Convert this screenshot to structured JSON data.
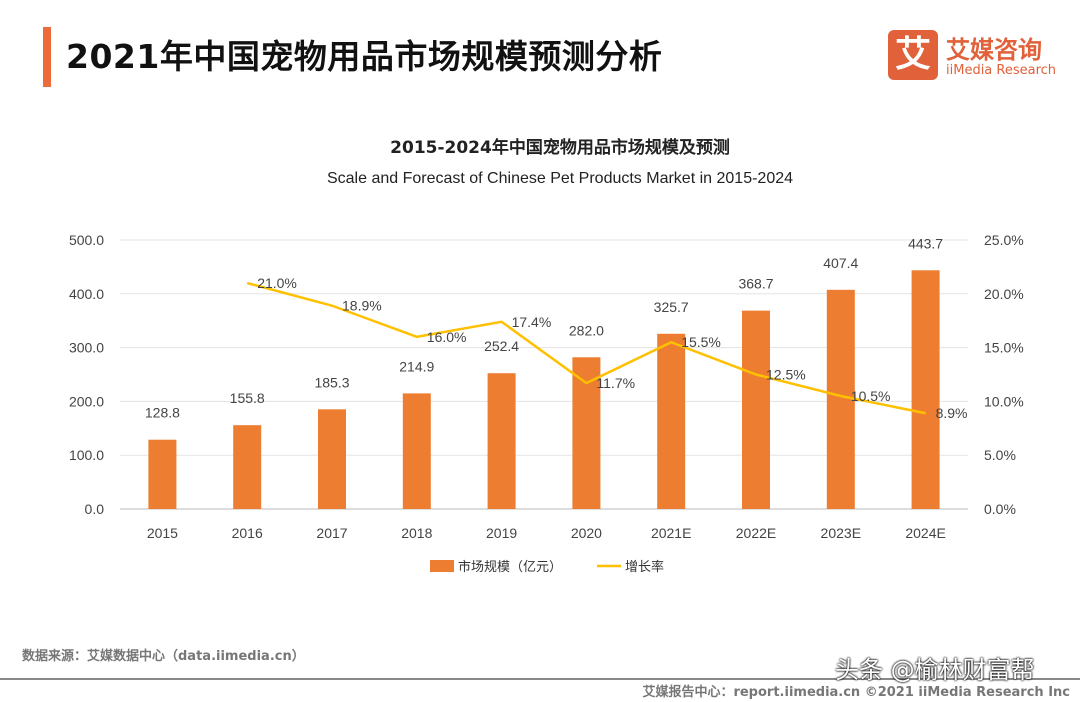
{
  "header": {
    "title": "2021年中国宠物用品市场规模预测分析",
    "logo_glyph": "艾",
    "logo_cn": "艾媒咨询",
    "logo_en": "iiMedia Research"
  },
  "chart_data": {
    "type": "bar+line",
    "title": "2015-2024年中国宠物用品市场规模及预测",
    "subtitle": "Scale and Forecast of Chinese Pet Products Market in 2015-2024",
    "categories": [
      "2015",
      "2016",
      "2017",
      "2018",
      "2019",
      "2020",
      "2021E",
      "2022E",
      "2023E",
      "2024E"
    ],
    "series": [
      {
        "name": "市场规模（亿元）",
        "type": "bar",
        "axis": "left",
        "color": "#ED7D31",
        "values": [
          128.8,
          155.8,
          185.3,
          214.9,
          252.4,
          282.0,
          325.7,
          368.7,
          407.4,
          443.7
        ],
        "labels": [
          "128.8",
          "155.8",
          "185.3",
          "214.9",
          "252.4",
          "282.0",
          "325.7",
          "368.7",
          "407.4",
          "443.7"
        ]
      },
      {
        "name": "增长率",
        "type": "line",
        "axis": "right",
        "color": "#FFC000",
        "values": [
          null,
          21.0,
          18.9,
          16.0,
          17.4,
          11.7,
          15.5,
          12.5,
          10.5,
          8.9
        ],
        "labels": [
          "",
          "21.0%",
          "18.9%",
          "16.0%",
          "17.4%",
          "11.7%",
          "15.5%",
          "12.5%",
          "10.5%",
          "8.9%"
        ]
      }
    ],
    "left_axis": {
      "range": [
        0,
        500
      ],
      "ticks": [
        "0.0",
        "100.0",
        "200.0",
        "300.0",
        "400.0",
        "500.0"
      ]
    },
    "right_axis": {
      "range": [
        0,
        25
      ],
      "ticks": [
        "0.0%",
        "5.0%",
        "10.0%",
        "15.0%",
        "20.0%",
        "25.0%"
      ]
    },
    "grid": true,
    "legend": "bottom"
  },
  "footer": {
    "source": "数据来源：艾媒数据中心（data.iimedia.cn）",
    "report": "艾媒报告中心：report.iimedia.cn ©2021 iiMedia Research Inc",
    "watermark": "头条 @榆林财富帮"
  }
}
